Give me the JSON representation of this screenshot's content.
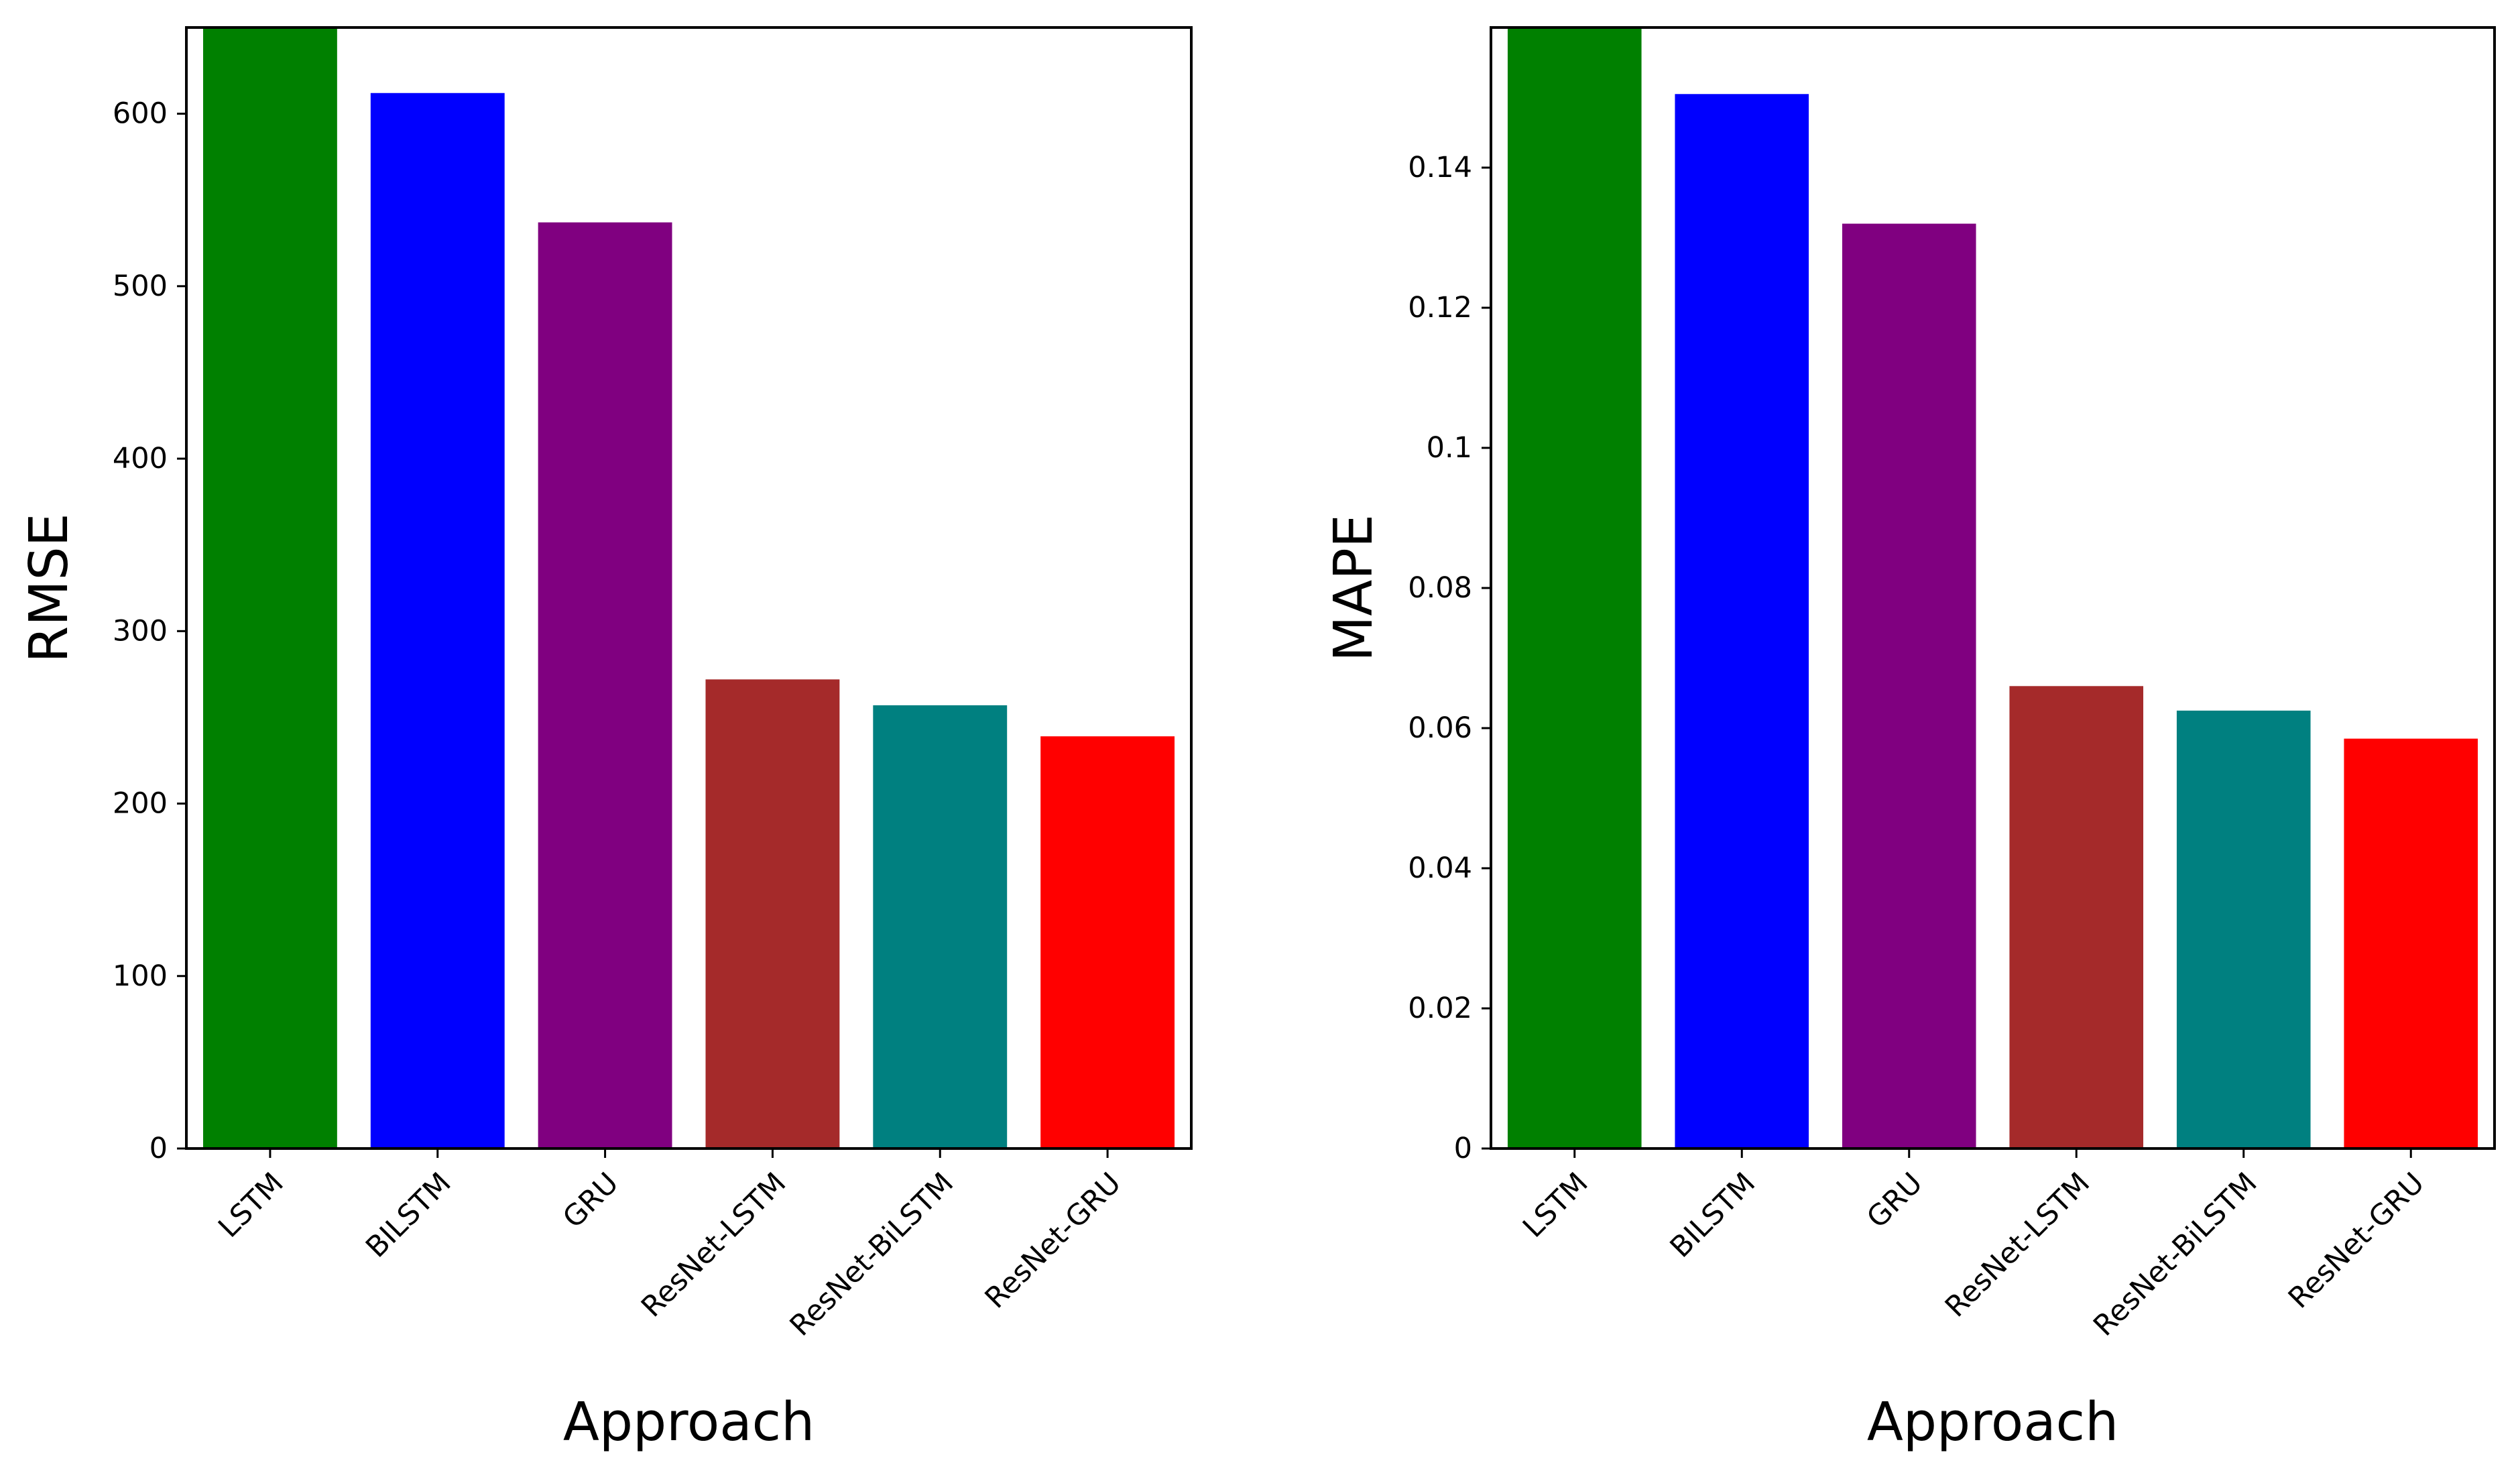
{
  "chart_data": [
    {
      "type": "bar",
      "title": "",
      "xlabel": "Approach",
      "ylabel": "RMSE",
      "categories": [
        "LSTM",
        "BILSTM",
        "GRU",
        "ResNet-LSTM",
        "ResNet-BiLSTM",
        "ResNet-GRU"
      ],
      "values": [
        650,
        612,
        537,
        272,
        257,
        239
      ],
      "colors": [
        "#008000",
        "#0000ff",
        "#800080",
        "#a52a2a",
        "#008080",
        "#ff0000"
      ],
      "ylim": [
        0,
        650
      ],
      "yticks": [
        0,
        100,
        200,
        300,
        400,
        500,
        600
      ],
      "ytick_labels": [
        "0",
        "100",
        "200",
        "300",
        "400",
        "500",
        "600"
      ],
      "grid": false
    },
    {
      "type": "bar",
      "title": "",
      "xlabel": "Approach",
      "ylabel": "MAPE",
      "categories": [
        "LSTM",
        "BILSTM",
        "GRU",
        "ResNet-LSTM",
        "ResNet-BiLSTM",
        "ResNet-GRU"
      ],
      "values": [
        0.16,
        0.1505,
        0.132,
        0.066,
        0.0625,
        0.0585
      ],
      "colors": [
        "#008000",
        "#0000ff",
        "#800080",
        "#a52a2a",
        "#008080",
        "#ff0000"
      ],
      "ylim": [
        0,
        0.16
      ],
      "yticks": [
        0,
        0.02,
        0.04,
        0.06,
        0.08,
        0.1,
        0.12,
        0.14
      ],
      "ytick_labels": [
        "0",
        "0.02",
        "0.04",
        "0.06",
        "0.08",
        "0.1",
        "0.12",
        "0.14"
      ],
      "grid": false
    }
  ]
}
